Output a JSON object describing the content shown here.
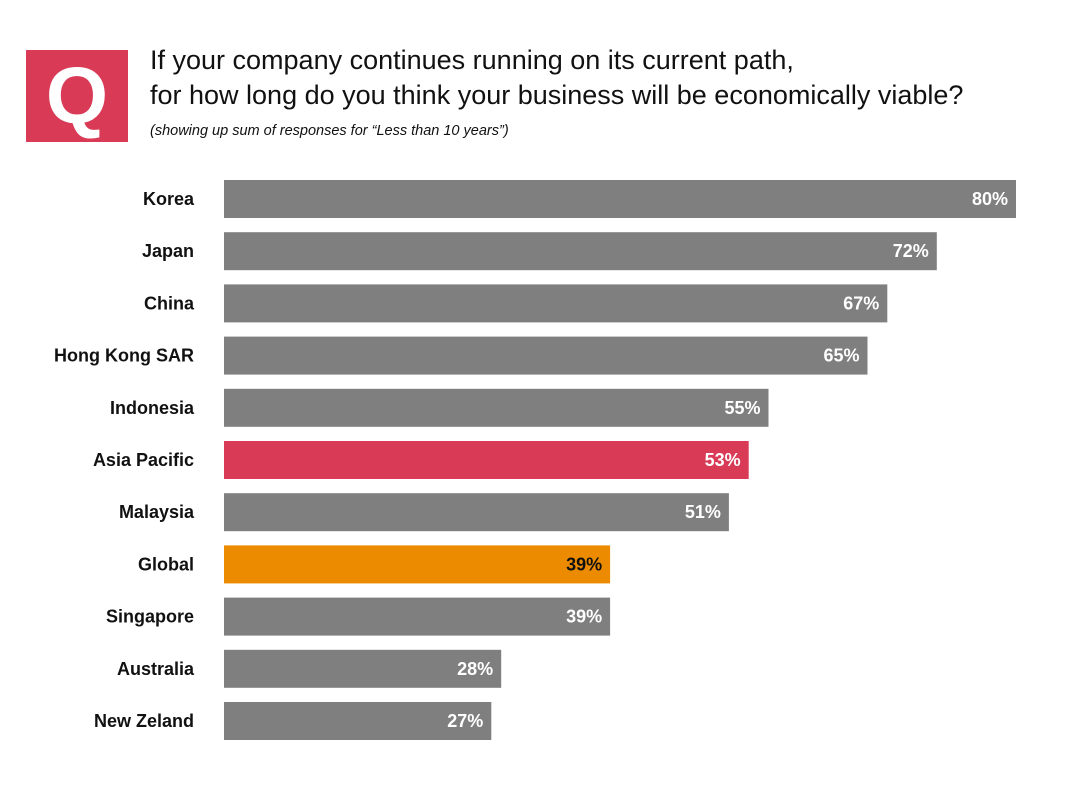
{
  "badge": {
    "letter": "Q",
    "color": "#d93a56"
  },
  "header": {
    "title_line1": "If your company continues running on its current path,",
    "title_line2": "for how long do you think your business will be economically viable?",
    "subtitle": "(showing up sum of responses for “Less than 10 years”)"
  },
  "colors": {
    "default_bar": "#7f7f7f",
    "asia_pacific_bar": "#d93a56",
    "global_bar": "#ec8b00",
    "value_text_light": "#ffffff",
    "value_text_dark": "#111111"
  },
  "chart_data": {
    "type": "bar",
    "orientation": "horizontal",
    "title": "If your company continues running on its current path, for how long do you think your business will be economically viable?",
    "subtitle": "(showing up sum of responses for “Less than 10 years”)",
    "xlabel": "",
    "ylabel": "",
    "xlim": [
      0,
      80
    ],
    "grid": false,
    "legend": "none",
    "unit": "%",
    "categories": [
      "Korea",
      "Japan",
      "China",
      "Hong Kong SAR",
      "Indonesia",
      "Asia Pacific",
      "Malaysia",
      "Global",
      "Singapore",
      "Australia",
      "New Zeland"
    ],
    "values": [
      80,
      72,
      67,
      65,
      55,
      53,
      51,
      39,
      39,
      28,
      27
    ],
    "value_labels": [
      "80%",
      "72%",
      "67%",
      "65%",
      "55%",
      "53%",
      "51%",
      "39%",
      "39%",
      "28%",
      "27%"
    ],
    "highlight": {
      "Asia Pacific": "#d93a56",
      "Global": "#ec8b00"
    }
  }
}
